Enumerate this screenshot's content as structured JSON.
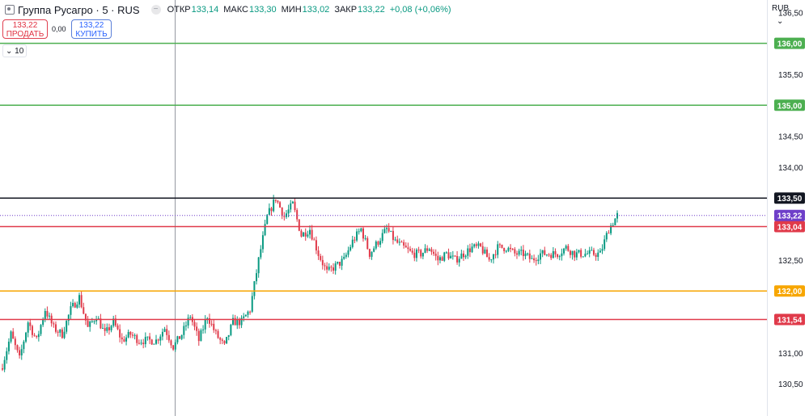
{
  "header": {
    "symbol_title": "Группа Русагро · 5 · RUS",
    "open_label": "ОТКР",
    "open_value": "133,14",
    "high_label": "МАКС",
    "high_value": "133,30",
    "low_label": "МИН",
    "low_value": "133,02",
    "close_label": "ЗАКР",
    "close_value": "133,22",
    "change": "+0,08 (+0,06%)"
  },
  "trade": {
    "sell_price": "133,22",
    "sell_label": "ПРОДАТЬ",
    "spread": "0,00",
    "buy_price": "133,22",
    "buy_label": "КУПИТЬ"
  },
  "indicator_toggle": "10",
  "currency": "RUB",
  "chart_data": {
    "type": "candlestick",
    "y_range": [
      129.98,
      136.7
    ],
    "y_ticks": [
      {
        "value": 130.5,
        "label": "130,50"
      },
      {
        "value": 131.0,
        "label": "131,00"
      },
      {
        "value": 132.5,
        "label": "132,50"
      },
      {
        "value": 134.0,
        "label": "134,00"
      },
      {
        "value": 134.5,
        "label": "134,50"
      },
      {
        "value": 135.5,
        "label": "135,50"
      },
      {
        "value": 136.5,
        "label": "136,50"
      }
    ],
    "grid": false,
    "horizontal_lines": [
      {
        "value": 136.0,
        "label": "136,00",
        "color": "#4caf50"
      },
      {
        "value": 135.0,
        "label": "135,00",
        "color": "#4caf50"
      },
      {
        "value": 133.5,
        "label": "133,50",
        "color": "#131722"
      },
      {
        "value": 133.04,
        "label": "133,04",
        "color": "#e03a4a"
      },
      {
        "value": 132.0,
        "label": "132,00",
        "color": "#f7a600"
      },
      {
        "value": 131.54,
        "label": "131,54",
        "color": "#e03a4a"
      }
    ],
    "last_price": {
      "value": 133.22,
      "label": "133,22",
      "color": "#6e3fc9"
    },
    "colors": {
      "up": "#089981",
      "down": "#e03a4a"
    },
    "close_path": [
      [
        0,
        130.8
      ],
      [
        4,
        131.3
      ],
      [
        8,
        130.9
      ],
      [
        12,
        131.5
      ],
      [
        16,
        131.2
      ],
      [
        20,
        131.7
      ],
      [
        24,
        131.4
      ],
      [
        28,
        131.3
      ],
      [
        32,
        131.7
      ],
      [
        36,
        131.9
      ],
      [
        40,
        131.4
      ],
      [
        44,
        131.6
      ],
      [
        48,
        131.3
      ],
      [
        52,
        131.5
      ],
      [
        56,
        131.2
      ],
      [
        60,
        131.3
      ],
      [
        64,
        131.2
      ],
      [
        68,
        131.2
      ],
      [
        72,
        131.2
      ],
      [
        76,
        131.4
      ],
      [
        80,
        131.1
      ],
      [
        84,
        131.3
      ],
      [
        88,
        131.6
      ],
      [
        92,
        131.2
      ],
      [
        96,
        131.6
      ],
      [
        100,
        131.3
      ],
      [
        104,
        131.1
      ],
      [
        108,
        131.5
      ],
      [
        112,
        131.5
      ],
      [
        116,
        131.7
      ],
      [
        120,
        132.5
      ],
      [
        124,
        133.2
      ],
      [
        128,
        133.5
      ],
      [
        132,
        133.2
      ],
      [
        136,
        133.4
      ],
      [
        140,
        132.9
      ],
      [
        144,
        133.0
      ],
      [
        148,
        132.6
      ],
      [
        152,
        132.3
      ],
      [
        156,
        132.4
      ],
      [
        160,
        132.5
      ],
      [
        164,
        132.8
      ],
      [
        168,
        133.0
      ],
      [
        172,
        132.6
      ],
      [
        176,
        132.8
      ],
      [
        180,
        133.0
      ],
      [
        184,
        132.8
      ],
      [
        188,
        132.7
      ],
      [
        192,
        132.6
      ],
      [
        196,
        132.6
      ],
      [
        200,
        132.7
      ],
      [
        204,
        132.5
      ],
      [
        208,
        132.6
      ],
      [
        212,
        132.5
      ],
      [
        216,
        132.6
      ],
      [
        220,
        132.7
      ],
      [
        224,
        132.7
      ],
      [
        228,
        132.5
      ],
      [
        232,
        132.7
      ],
      [
        236,
        132.7
      ],
      [
        240,
        132.6
      ],
      [
        244,
        132.6
      ],
      [
        248,
        132.5
      ],
      [
        252,
        132.6
      ],
      [
        256,
        132.6
      ],
      [
        260,
        132.6
      ],
      [
        264,
        132.7
      ],
      [
        268,
        132.6
      ],
      [
        272,
        132.6
      ],
      [
        276,
        132.6
      ],
      [
        280,
        132.6
      ],
      [
        284,
        133.0
      ],
      [
        288,
        133.22
      ]
    ]
  }
}
